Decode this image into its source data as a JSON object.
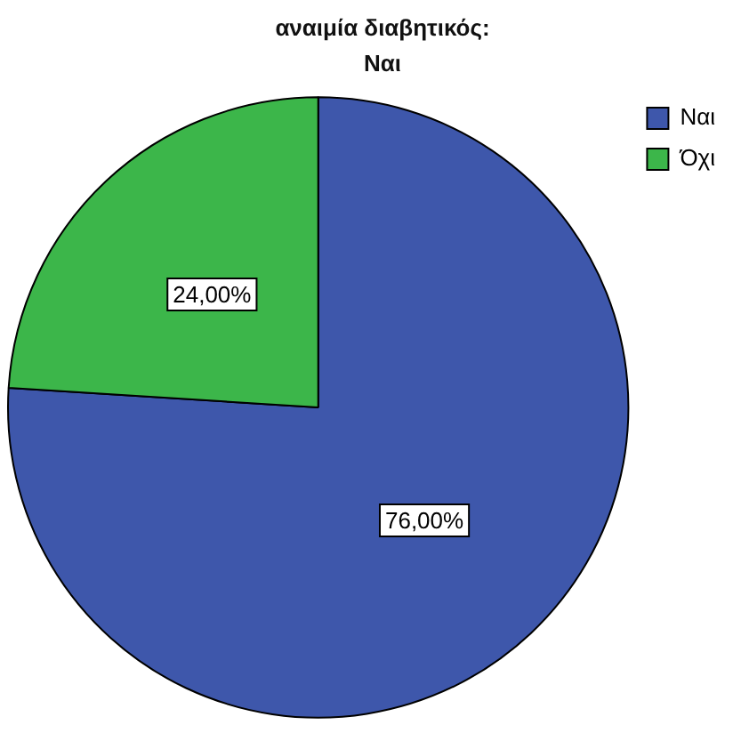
{
  "chart_data": {
    "type": "pie",
    "title": "αναιμία διαβητικός: Ναι",
    "categories": [
      "Ναι",
      "Όχι"
    ],
    "values": [
      76,
      24
    ],
    "colors": [
      "#3e57ab",
      "#3cb64a"
    ],
    "value_labels": [
      "76,00%",
      "24,00%"
    ],
    "legend": "top right"
  }
}
